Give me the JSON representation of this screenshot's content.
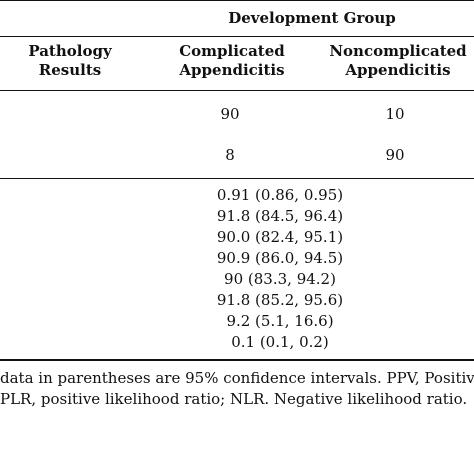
{
  "header": {
    "group_title": "Development Group",
    "col_pathology": [
      "Pathology",
      "Results"
    ],
    "col_complicated": [
      "Complicated",
      "Appendicitis"
    ],
    "col_noncomplicated": [
      "Noncomplicated",
      "Appendicitis"
    ]
  },
  "rows": [
    {
      "complicated": "90",
      "noncomplicated": "10"
    },
    {
      "complicated": "8",
      "noncomplicated": "90"
    }
  ],
  "stats": [
    "0.91 (0.86, 0.95)",
    "91.8 (84.5, 96.4)",
    "90.0 (82.4, 95.1)",
    "90.9 (86.0, 94.5)",
    "90 (83.3, 94.2)",
    "91.8 (85.2, 95.6)",
    "9.2 (5.1, 16.6)",
    "0.1 (0.1, 0.2)"
  ],
  "footnote": {
    "line1": "data in parentheses are 95% confidence intervals. PPV, Positive",
    "line2": "PLR, positive likelihood ratio; NLR. Negative likelihood ratio."
  }
}
